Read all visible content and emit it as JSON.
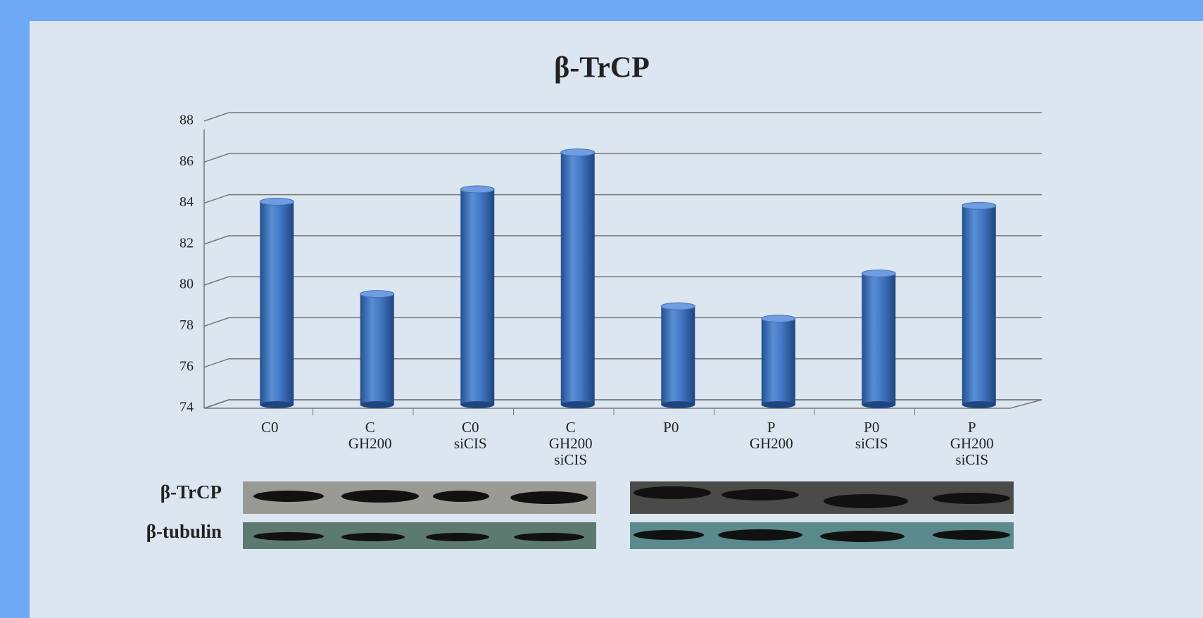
{
  "chart_data": {
    "type": "bar",
    "title": "β-TrCP",
    "categories": [
      "C0",
      "C GH200",
      "C0 siCIS",
      "C GH200 siCIS",
      "P0",
      "P GH200",
      "P0 siCIS",
      "P GH200 siCIS"
    ],
    "values": [
      83.9,
      79.4,
      84.5,
      86.3,
      78.8,
      78.2,
      80.4,
      83.7
    ],
    "color": "#3f72b8",
    "ylim": [
      74,
      88
    ],
    "yticks": [
      74,
      76,
      78,
      80,
      82,
      84,
      86,
      88
    ],
    "grid": true,
    "annotations": [
      "β-TrCP",
      "β-tubulin"
    ]
  }
}
